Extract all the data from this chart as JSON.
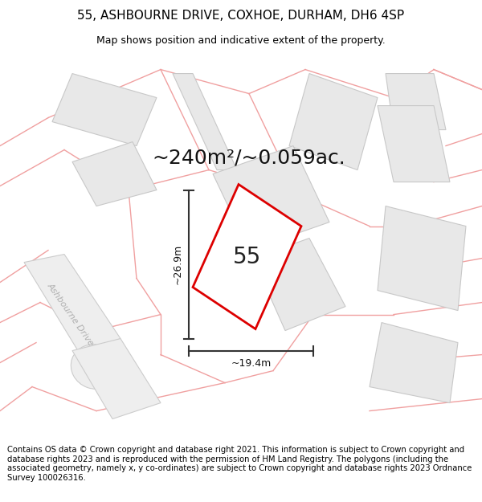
{
  "title_line1": "55, ASHBOURNE DRIVE, COXHOE, DURHAM, DH6 4SP",
  "title_line2": "Map shows position and indicative extent of the property.",
  "area_label": "~240m²/~0.059ac.",
  "property_number": "55",
  "dim_width": "~19.4m",
  "dim_height": "~26.9m",
  "road_label": "Ashbourne Drive",
  "footer_text": "Contains OS data © Crown copyright and database right 2021. This information is subject to Crown copyright and database rights 2023 and is reproduced with the permission of HM Land Registry. The polygons (including the associated geometry, namely x, y co-ordinates) are subject to Crown copyright and database rights 2023 Ordnance Survey 100026316.",
  "bg_color": "#ffffff",
  "map_bg": "#f9f9f9",
  "property_fill": "#ffffff",
  "property_edge": "#dd0000",
  "building_fill": "#e8e8e8",
  "building_edge": "#c8c8c8",
  "boundary_color": "#f0a0a0",
  "dim_color": "#333333",
  "road_text_color": "#b0b0b0",
  "title_fontsize": 11,
  "subtitle_fontsize": 9,
  "area_fontsize": 18,
  "number_fontsize": 20,
  "footer_fontsize": 7.2,
  "dim_fontsize": 9
}
